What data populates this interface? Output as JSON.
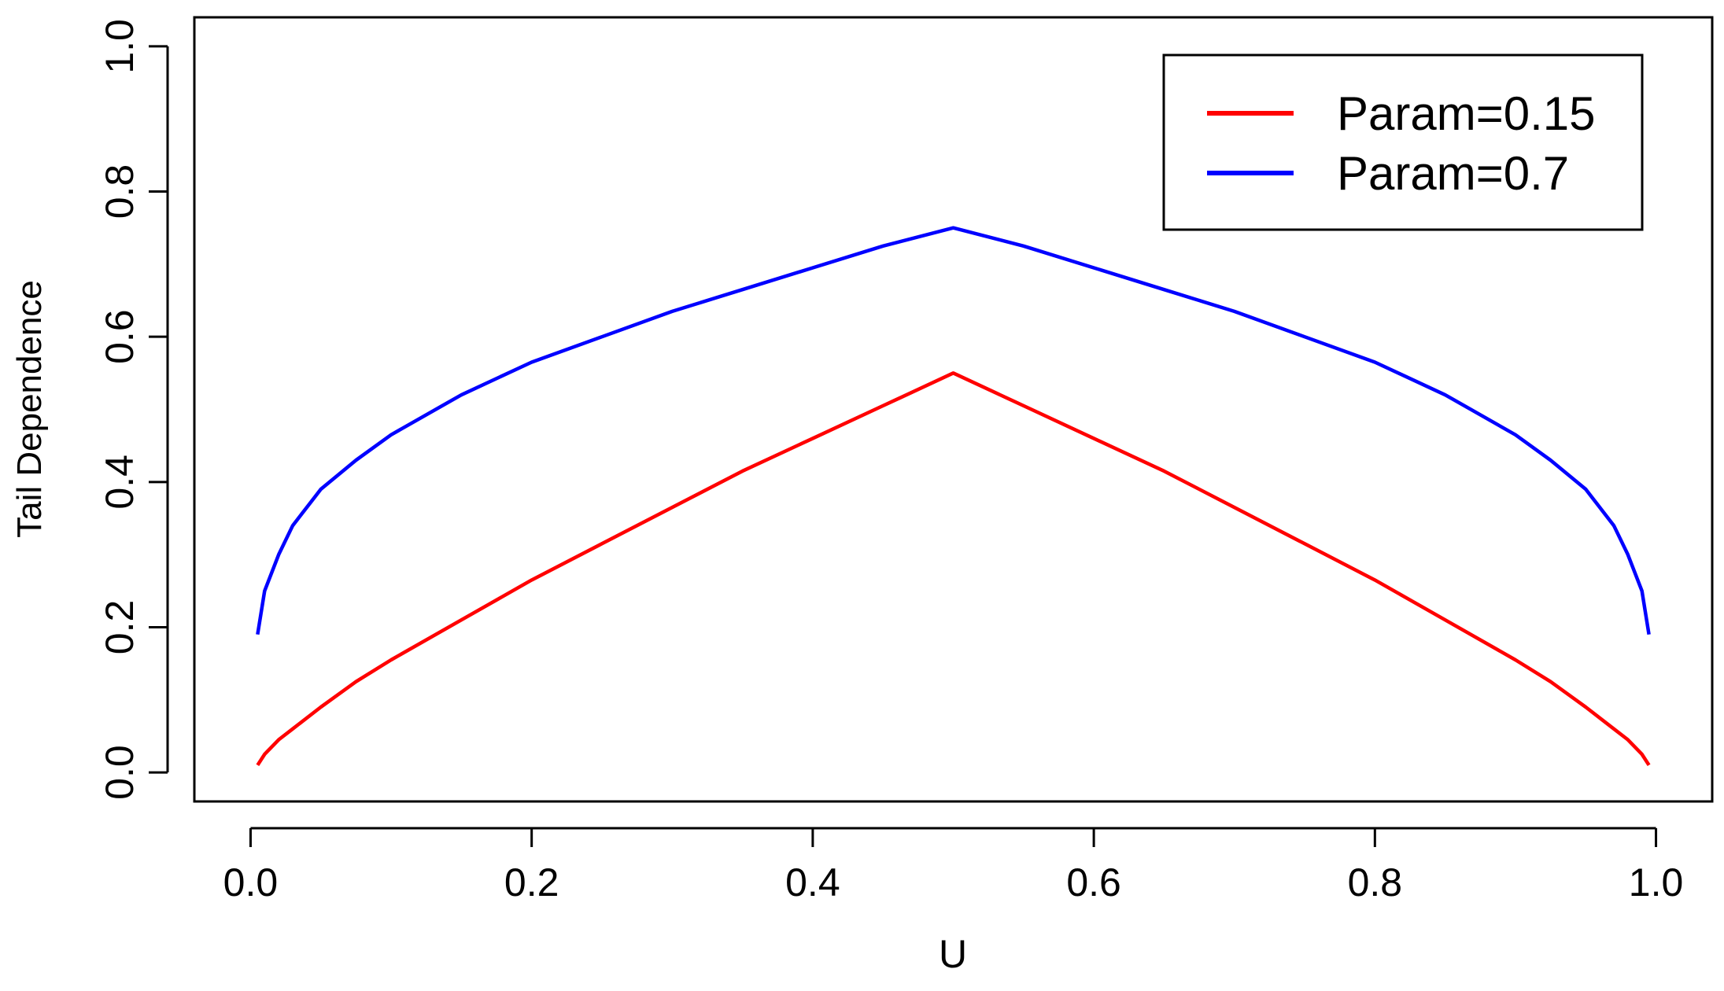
{
  "chart_data": {
    "type": "line",
    "xlabel": "U",
    "ylabel": "Tail Dependence",
    "x": [
      0.005,
      0.01,
      0.02,
      0.03,
      0.05,
      0.075,
      0.1,
      0.15,
      0.2,
      0.25,
      0.3,
      0.35,
      0.4,
      0.45,
      0.5,
      0.55,
      0.6,
      0.65,
      0.7,
      0.75,
      0.8,
      0.85,
      0.9,
      0.925,
      0.95,
      0.97,
      0.98,
      0.99,
      0.995
    ],
    "series": [
      {
        "name": "Param=0.15",
        "color": "#ff0000",
        "values": [
          0.01,
          0.025,
          0.045,
          0.06,
          0.09,
          0.125,
          0.155,
          0.21,
          0.265,
          0.315,
          0.365,
          0.415,
          0.46,
          0.505,
          0.55,
          0.505,
          0.46,
          0.415,
          0.365,
          0.315,
          0.265,
          0.21,
          0.155,
          0.125,
          0.09,
          0.06,
          0.045,
          0.025,
          0.01
        ]
      },
      {
        "name": "Param=0.7",
        "color": "#0000ff",
        "values": [
          0.19,
          0.25,
          0.3,
          0.34,
          0.39,
          0.43,
          0.465,
          0.52,
          0.565,
          0.6,
          0.635,
          0.665,
          0.695,
          0.725,
          0.75,
          0.725,
          0.695,
          0.665,
          0.635,
          0.6,
          0.565,
          0.52,
          0.465,
          0.43,
          0.39,
          0.34,
          0.3,
          0.25,
          0.19
        ]
      }
    ],
    "xlim": [
      -0.04,
      1.04
    ],
    "ylim": [
      -0.04,
      1.04
    ],
    "xticks": [
      {
        "value": 0,
        "label": "0.0"
      },
      0.2,
      0.4,
      0.6,
      0.8,
      {
        "value": 1,
        "label": "1.0"
      }
    ],
    "yticks": [
      {
        "value": 0,
        "label": "0.0"
      },
      0.2,
      0.4,
      0.6,
      0.8,
      {
        "value": 1,
        "label": "1.0"
      }
    ],
    "legend": "topright"
  }
}
